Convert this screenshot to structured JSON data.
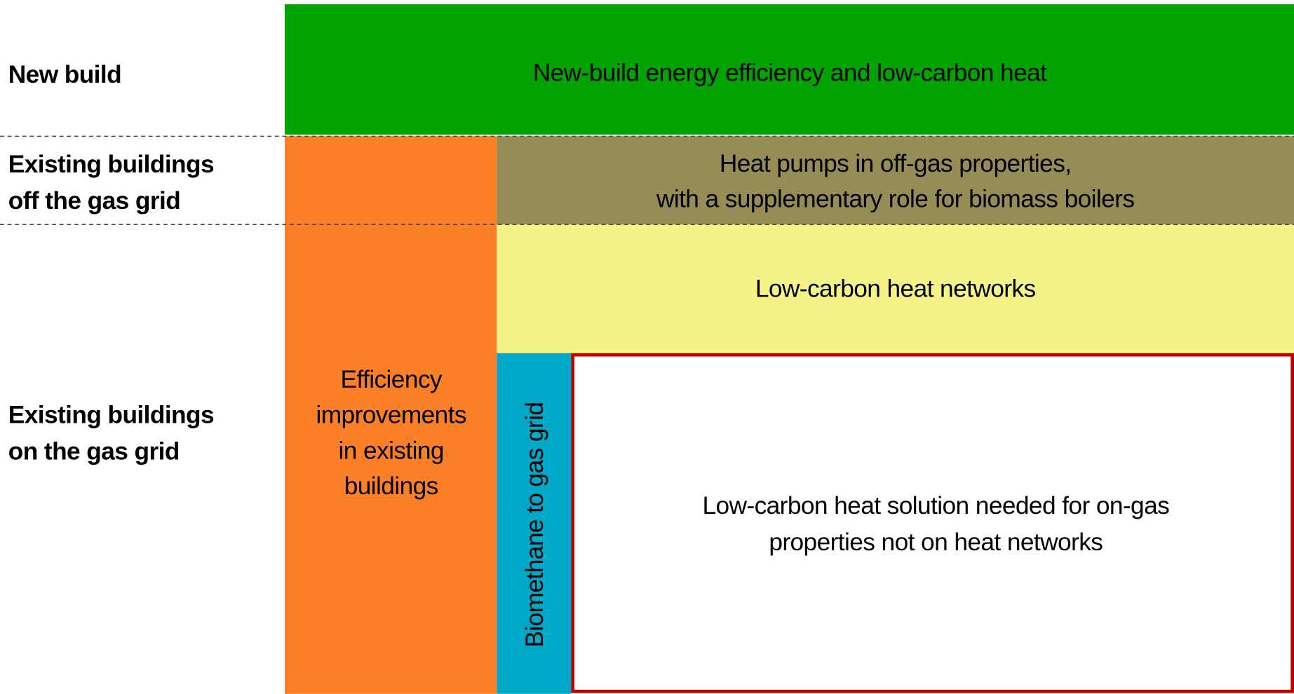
{
  "rows": [
    {
      "lines": [
        "New build"
      ]
    },
    {
      "lines": [
        "Existing buildings",
        "off the gas grid"
      ]
    },
    {
      "lines": [
        "Existing buildings",
        "on the gas grid"
      ]
    }
  ],
  "blocks": {
    "new_build": {
      "lines": [
        "New-build energy efficiency and low-carbon heat"
      ]
    },
    "efficiency": {
      "lines": [
        "Efficiency",
        "improvements",
        "in existing",
        "buildings"
      ]
    },
    "heat_pumps": {
      "lines": [
        "Heat pumps in off-gas properties,",
        "with a supplementary role for biomass boilers"
      ]
    },
    "heat_networks": {
      "lines": [
        "Low-carbon heat networks"
      ]
    },
    "biomethane": {
      "lines": [
        "Biomethane to gas grid"
      ]
    },
    "solution": {
      "lines": [
        "Low-carbon heat solution needed for on-gas",
        "properties not on heat networks"
      ]
    }
  }
}
